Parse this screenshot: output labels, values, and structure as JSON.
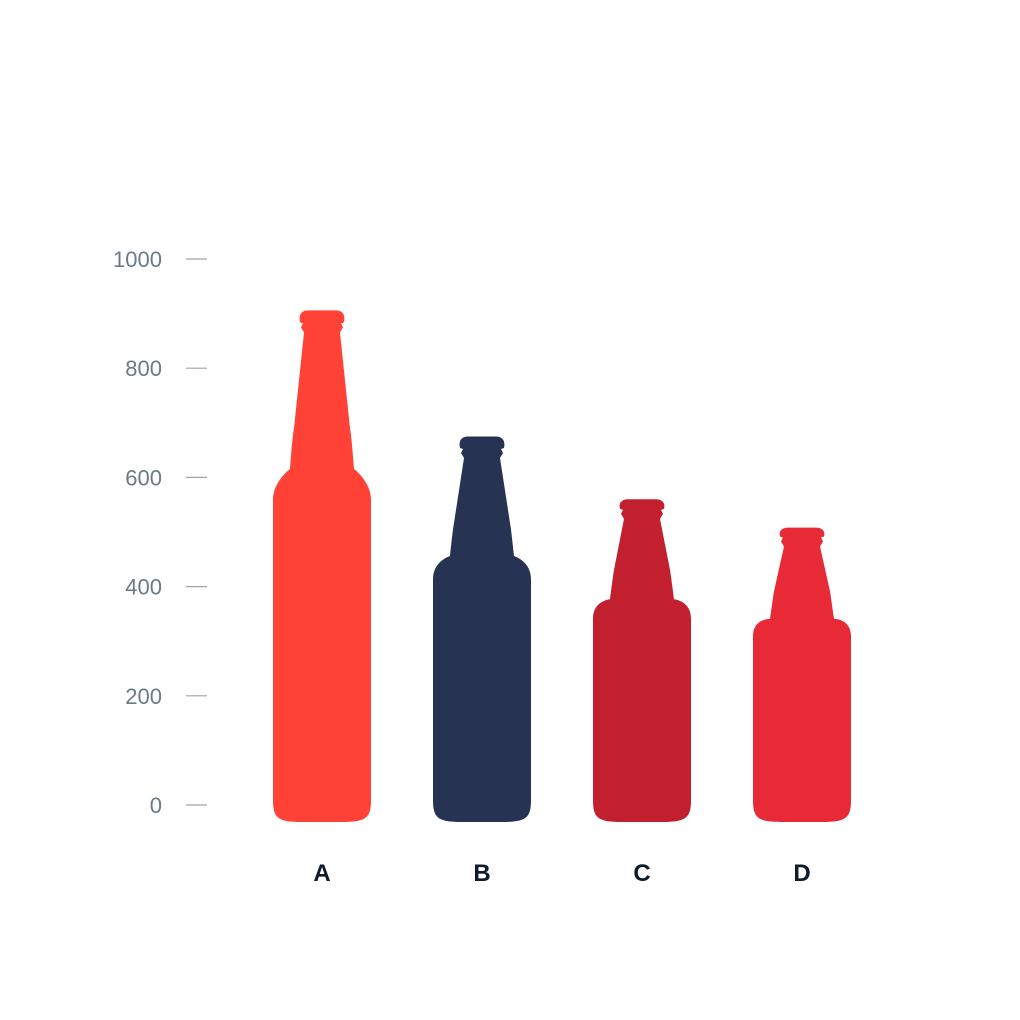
{
  "chart_data": {
    "type": "bar",
    "categories": [
      "A",
      "B",
      "C",
      "D"
    ],
    "values": [
      906,
      675,
      560,
      508
    ],
    "colors": [
      "#ff4136",
      "#273352",
      "#c2202f",
      "#e82a36"
    ],
    "yticks": [
      0,
      200,
      400,
      600,
      800,
      1000
    ],
    "ylim": [
      0,
      1000
    ],
    "title": "",
    "xlabel": "",
    "ylabel": "",
    "grid": false,
    "mark_shape": "bottle"
  }
}
